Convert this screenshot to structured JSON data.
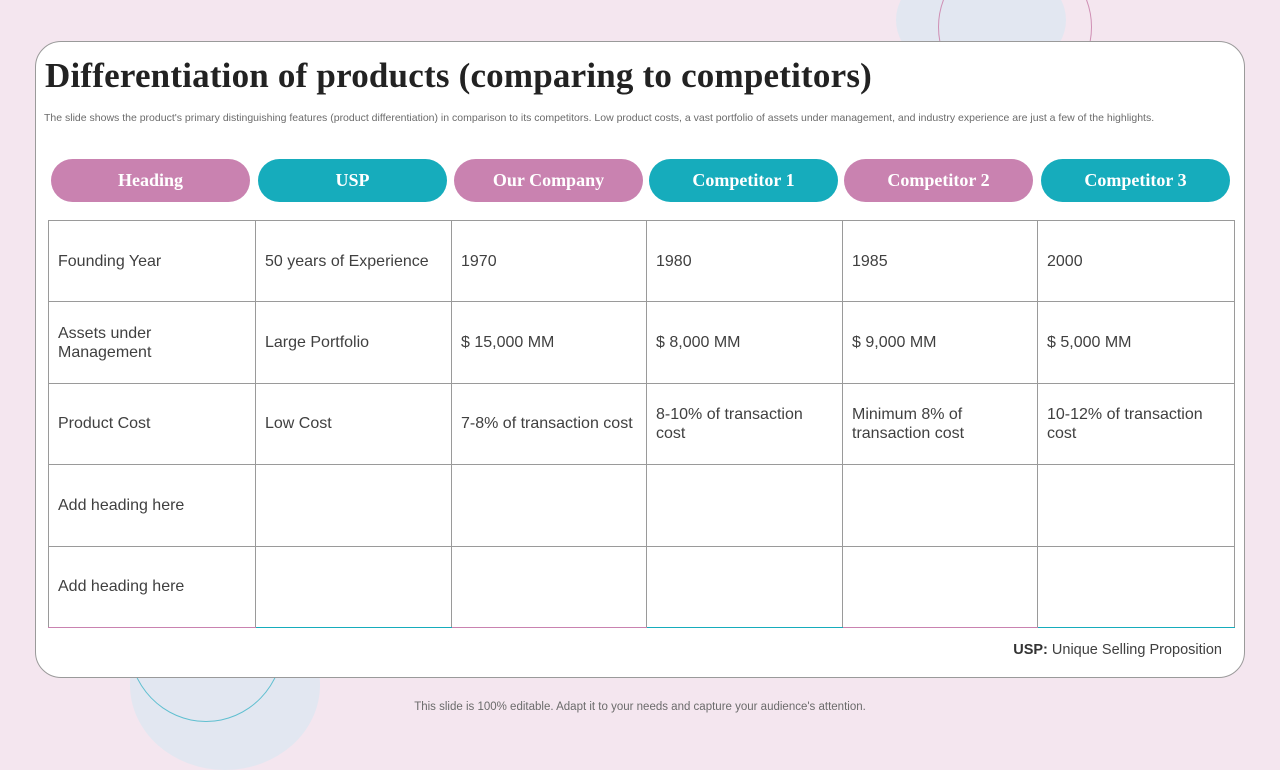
{
  "slide": {
    "title": "Differentiation of products (comparing to competitors)",
    "subtitle": "The slide shows the product's primary distinguishing features (product differentiation) in comparison to its competitors. Low product costs, a vast portfolio of assets under management, and industry experience are just a few of the highlights."
  },
  "columns": [
    "Heading",
    "USP",
    "Our Company",
    "Competitor 1",
    "Competitor 2",
    "Competitor 3"
  ],
  "rows": [
    [
      "Founding Year",
      "50 years of Experience",
      "1970",
      "1980",
      "1985",
      "2000"
    ],
    [
      "Assets under Management",
      "Large Portfolio",
      "$ 15,000 MM",
      "$ 8,000 MM",
      "$ 9,000 MM",
      "$ 5,000 MM"
    ],
    [
      "Product Cost",
      "Low Cost",
      "7-8% of transaction cost",
      "8-10% of transaction cost",
      "Minimum 8% of transaction cost",
      "10-12% of transaction cost"
    ],
    [
      "Add heading here",
      "",
      "",
      "",
      "",
      ""
    ],
    [
      "Add heading here",
      "",
      "",
      "",
      "",
      ""
    ]
  ],
  "legend": {
    "term": "USP:",
    "definition": "Unique Selling Proposition"
  },
  "footer": "This slide is 100% editable. Adapt it to your needs and capture your audience's attention.",
  "colors": {
    "pink": "#c982b0",
    "teal": "#16acbc",
    "background": "#f4e6ef"
  }
}
